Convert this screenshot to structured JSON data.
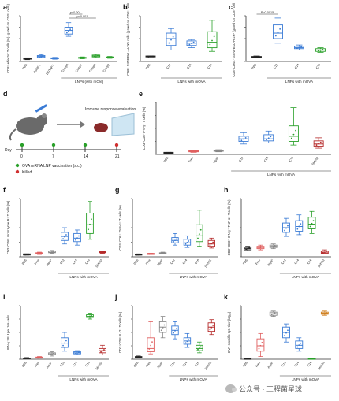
{
  "panels": [
    {
      "id": "a",
      "label": "a",
      "type": "box",
      "ylabel": "CD8⁺ effector T cells (%) (gated on CD3⁺ cells)",
      "cats": [
        "PBS",
        "DSPE-L",
        "DOTAP-L",
        "Comp4",
        "Comp1",
        "Comp3",
        "Comp2"
      ],
      "boxes": [
        [
          0.04,
          0.05,
          0.06,
          0.07,
          0.08
        ],
        [
          0.08,
          0.09,
          0.11,
          0.13,
          0.15
        ],
        [
          0.05,
          0.06,
          0.07,
          0.08,
          0.09
        ],
        [
          0.55,
          0.6,
          0.68,
          0.75,
          0.85
        ],
        [
          0.06,
          0.07,
          0.08,
          0.09,
          0.1
        ],
        [
          0.08,
          0.1,
          0.12,
          0.14,
          0.16
        ],
        [
          0.07,
          0.08,
          0.09,
          0.1,
          0.11
        ]
      ],
      "colors": [
        "#222222",
        "#3a7bd5",
        "#3a7bd5",
        "#3a7bd5",
        "#2aa02a",
        "#2aa02a",
        "#2aa02a"
      ],
      "group": "LNPs (with mCre)",
      "sig": [
        [
          "Comp4",
          "Comp1",
          "p<0.001"
        ],
        [
          "Comp4",
          "Comp3",
          "p<0.001"
        ]
      ]
    },
    {
      "id": "b",
      "label": "b",
      "type": "box",
      "ylabel": "CD8⁺ SIINFEKL-H-2Kᵇ cells (gated on CD8⁺ cells)",
      "cats": [
        "PBS",
        "C12",
        "C14",
        "C16"
      ],
      "boxes": [
        [
          0.1,
          0.1,
          0.11,
          0.12,
          0.12
        ],
        [
          0.25,
          0.35,
          0.5,
          0.62,
          0.72
        ],
        [
          0.3,
          0.35,
          0.4,
          0.45,
          0.48
        ],
        [
          0.22,
          0.3,
          0.42,
          0.65,
          0.9
        ]
      ],
      "colors": [
        "#222222",
        "#3a7bd5",
        "#3a7bd5",
        "#2aa02a"
      ],
      "group": "LNPs with mOVA",
      "sig": []
    },
    {
      "id": "c",
      "label": "c",
      "type": "box",
      "ylabel": "CD8⁺CD44⁺ SIINFEKL-H-2Kᵇ (gated on CD8⁺ cells)",
      "cats": [
        "PBS",
        "C12",
        "C14",
        "C16"
      ],
      "boxes": [
        [
          0.08,
          0.09,
          0.1,
          0.11,
          0.12
        ],
        [
          0.4,
          0.5,
          0.62,
          0.8,
          0.95
        ],
        [
          0.25,
          0.28,
          0.3,
          0.33,
          0.36
        ],
        [
          0.2,
          0.22,
          0.25,
          0.28,
          0.3
        ]
      ],
      "colors": [
        "#222222",
        "#3a7bd5",
        "#3a7bd5",
        "#2aa02a"
      ],
      "group": "LNPs with mOVA",
      "sig": [
        [
          "PBS",
          "C12",
          "P=0.0015"
        ]
      ]
    },
    {
      "id": "e",
      "label": "e",
      "type": "box",
      "ylabel": "CD3⁺CD8⁺IFN-γ⁺ T cells (%)",
      "cats": [
        "PBS",
        "Free",
        "Algal¹",
        "C12",
        "C14",
        "C16",
        "SM102"
      ],
      "boxes": [
        [
          0.02,
          0.02,
          0.03,
          0.04,
          0.04
        ],
        [
          0.04,
          0.05,
          0.06,
          0.07,
          0.08
        ],
        [
          0.05,
          0.06,
          0.07,
          0.08,
          0.09
        ],
        [
          0.2,
          0.25,
          0.3,
          0.35,
          0.42
        ],
        [
          0.22,
          0.26,
          0.3,
          0.38,
          0.45
        ],
        [
          0.18,
          0.25,
          0.35,
          0.55,
          0.9
        ],
        [
          0.12,
          0.16,
          0.2,
          0.26,
          0.32
        ]
      ],
      "colors": [
        "#222222",
        "#e06060",
        "#888888",
        "#3a7bd5",
        "#3a7bd5",
        "#2aa02a",
        "#b52a2a"
      ],
      "group": "LNPs with mOVA",
      "sig": []
    },
    {
      "id": "f",
      "label": "f",
      "type": "box",
      "ylabel": "CD3⁺CD8⁺ Granzyme B⁺ T cells (%)",
      "cats": [
        "PBS",
        "Free",
        "Algal¹",
        "C12",
        "C14",
        "C16",
        "SM102"
      ],
      "boxes": [
        [
          0.03,
          0.03,
          0.04,
          0.05,
          0.05
        ],
        [
          0.04,
          0.05,
          0.06,
          0.07,
          0.08
        ],
        [
          0.06,
          0.07,
          0.08,
          0.1,
          0.11
        ],
        [
          0.22,
          0.28,
          0.35,
          0.42,
          0.5
        ],
        [
          0.2,
          0.26,
          0.32,
          0.4,
          0.46
        ],
        [
          0.3,
          0.4,
          0.55,
          0.75,
          0.95
        ],
        [
          0.06,
          0.07,
          0.08,
          0.09,
          0.1
        ]
      ],
      "colors": [
        "#222222",
        "#e06060",
        "#888888",
        "#3a7bd5",
        "#3a7bd5",
        "#2aa02a",
        "#b52a2a"
      ],
      "group": "LNPs with mOVA",
      "sig": []
    },
    {
      "id": "g",
      "label": "g",
      "type": "box",
      "ylabel": "CD3⁺CD8⁺ TNF-α⁺ T cells (%)",
      "cats": [
        "PBS",
        "Free",
        "Algal¹",
        "C12",
        "C14",
        "C16",
        "SM102"
      ],
      "boxes": [
        [
          0.03,
          0.03,
          0.04,
          0.04,
          0.05
        ],
        [
          0.04,
          0.04,
          0.05,
          0.06,
          0.06
        ],
        [
          0.05,
          0.06,
          0.06,
          0.07,
          0.08
        ],
        [
          0.2,
          0.24,
          0.28,
          0.33,
          0.4
        ],
        [
          0.16,
          0.2,
          0.24,
          0.3,
          0.36
        ],
        [
          0.18,
          0.26,
          0.36,
          0.55,
          0.8
        ],
        [
          0.15,
          0.18,
          0.22,
          0.28,
          0.32
        ]
      ],
      "colors": [
        "#222222",
        "#e06060",
        "#888888",
        "#3a7bd5",
        "#3a7bd5",
        "#2aa02a",
        "#b52a2a"
      ],
      "group": "LNPs with mOVA",
      "sig": []
    },
    {
      "id": "h",
      "label": "h",
      "type": "box",
      "ylabel": "CD3⁺CD8⁺ IFN-γ⁺ TNF-α⁺ T cells (%)",
      "cats": [
        "PBS",
        "Free",
        "Algal¹",
        "C12",
        "C14",
        "C16",
        "SM102"
      ],
      "boxes": [
        [
          0.1,
          0.12,
          0.14,
          0.16,
          0.18
        ],
        [
          0.12,
          0.14,
          0.16,
          0.18,
          0.2
        ],
        [
          0.14,
          0.16,
          0.18,
          0.2,
          0.22
        ],
        [
          0.35,
          0.42,
          0.5,
          0.58,
          0.66
        ],
        [
          0.38,
          0.44,
          0.52,
          0.62,
          0.72
        ],
        [
          0.4,
          0.48,
          0.56,
          0.68,
          0.78
        ],
        [
          0.05,
          0.06,
          0.08,
          0.1,
          0.12
        ]
      ],
      "colors": [
        "#222222",
        "#e06060",
        "#888888",
        "#3a7bd5",
        "#3a7bd5",
        "#2aa02a",
        "#b52a2a"
      ],
      "group": "LNPs with mOVA",
      "sig": []
    },
    {
      "id": "i",
      "label": "i",
      "type": "box",
      "ylabel": "IFN-γ SFU per 10⁶ cells",
      "cats": [
        "PBS",
        "Free",
        "Algal¹",
        "C12",
        "C14",
        "C16",
        "SM102"
      ],
      "boxes": [
        [
          0.01,
          0.01,
          0.02,
          0.02,
          0.03
        ],
        [
          0.02,
          0.02,
          0.03,
          0.04,
          0.05
        ],
        [
          0.06,
          0.08,
          0.1,
          0.12,
          0.14
        ],
        [
          0.15,
          0.22,
          0.3,
          0.4,
          0.5
        ],
        [
          0.08,
          0.1,
          0.12,
          0.14,
          0.16
        ],
        [
          0.75,
          0.78,
          0.8,
          0.83,
          0.86
        ],
        [
          0.08,
          0.12,
          0.16,
          0.2,
          0.26
        ]
      ],
      "colors": [
        "#222222",
        "#e06060",
        "#888888",
        "#3a7bd5",
        "#3a7bd5",
        "#2aa02a",
        "#b52a2a"
      ],
      "group": "LNPs with mOVA",
      "sig": []
    },
    {
      "id": "j",
      "label": "j",
      "type": "box",
      "ylabel": "CD3⁺CD8⁺ IL-2⁺ T cells (%)",
      "cats": [
        "PBS",
        "Free",
        "Algal¹",
        "C12",
        "C14",
        "C16",
        "SM102"
      ],
      "boxes": [
        [
          0.02,
          0.03,
          0.04,
          0.05,
          0.06
        ],
        [
          0.1,
          0.14,
          0.2,
          0.4,
          0.7
        ],
        [
          0.4,
          0.5,
          0.6,
          0.7,
          0.8
        ],
        [
          0.38,
          0.46,
          0.54,
          0.62,
          0.7
        ],
        [
          0.22,
          0.28,
          0.34,
          0.4,
          0.48
        ],
        [
          0.12,
          0.16,
          0.2,
          0.26,
          0.32
        ],
        [
          0.46,
          0.52,
          0.6,
          0.68,
          0.74
        ]
      ],
      "colors": [
        "#222222",
        "#e06060",
        "#888888",
        "#3a7bd5",
        "#3a7bd5",
        "#2aa02a",
        "#b52a2a"
      ],
      "group": "LNPs with mOVA",
      "sig": []
    },
    {
      "id": "k",
      "label": "k",
      "type": "box",
      "ylabel": "OVA-specific IgG titer (log₁₀)",
      "cats": [
        "PBS",
        "Free",
        "Algal¹",
        "C12",
        "C14",
        "C16",
        "SM102"
      ],
      "boxes": [
        [
          0.01,
          0.01,
          0.01,
          0.01,
          0.01
        ],
        [
          0.05,
          0.15,
          0.25,
          0.38,
          0.48
        ],
        [
          0.8,
          0.82,
          0.85,
          0.88,
          0.9
        ],
        [
          0.32,
          0.4,
          0.5,
          0.6,
          0.66
        ],
        [
          0.15,
          0.2,
          0.26,
          0.34,
          0.4
        ],
        [
          0.01,
          0.01,
          0.01,
          0.01,
          0.01
        ],
        [
          0.82,
          0.84,
          0.86,
          0.88,
          0.9
        ]
      ],
      "colors": [
        "#222222",
        "#e06060",
        "#888888",
        "#3a7bd5",
        "#3a7bd5",
        "#2aa02a",
        "#d08020"
      ],
      "group": "LNPs with mOVA",
      "sig": []
    }
  ],
  "schematic": {
    "label": "d",
    "title": "Immune response evaluation",
    "days_label": "Day",
    "days": [
      "0",
      "7",
      "14",
      "21"
    ],
    "legend": [
      {
        "text": "OVA mRNA LNP vaccination (s.c.)",
        "color": "#2aa02a"
      },
      {
        "text": "Killed",
        "color": "#d03030"
      }
    ]
  },
  "watermark": "公众号 · 工程菌星球"
}
